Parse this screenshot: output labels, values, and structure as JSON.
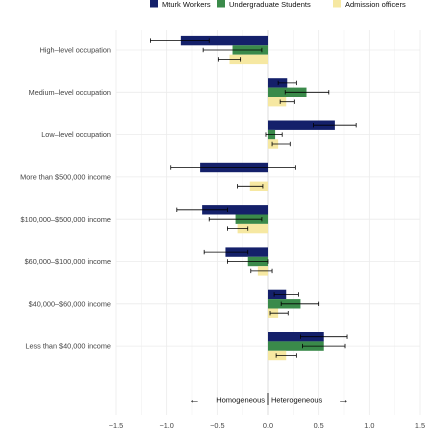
{
  "chart_data": {
    "type": "bar",
    "orientation": "horizontal",
    "title": "",
    "xlabel": "",
    "ylabel": "",
    "xlim": [
      -1.5,
      1.5
    ],
    "xticks": [
      -1.5,
      -1.0,
      -0.5,
      0.0,
      0.5,
      1.0,
      1.5
    ],
    "xtick_labels": [
      "−1.5",
      "−1.0",
      "−0.5",
      "0.0",
      "0.5",
      "1.0",
      "1.5"
    ],
    "grid": true,
    "legend_position": "top",
    "categories": [
      "High–level occupation",
      "Medium–level occupation",
      "Low–level occupation",
      "More than $500,000 income",
      "$100,000–$500,000 income",
      "$60,000–$100,000 income",
      "$40,000–$60,000 income",
      "Less than $40,000 income"
    ],
    "series": [
      {
        "name": "Mturk Workers",
        "color": "#14206a",
        "values": [
          -0.86,
          0.19,
          0.66,
          -0.67,
          -0.65,
          -0.42,
          0.18,
          0.55
        ],
        "err_low": [
          -1.16,
          0.1,
          0.45,
          -0.96,
          -0.9,
          -0.63,
          0.06,
          0.32
        ],
        "err_high": [
          -0.58,
          0.28,
          0.87,
          0.27,
          -0.4,
          -0.2,
          0.3,
          0.78
        ]
      },
      {
        "name": "Undergraduate Students",
        "color": "#3a8a4a",
        "values": [
          -0.35,
          0.38,
          0.07,
          0.0,
          -0.32,
          -0.2,
          0.32,
          0.55
        ],
        "err_low": [
          -0.64,
          0.17,
          -0.02,
          0.0,
          -0.58,
          -0.4,
          0.13,
          0.34
        ],
        "err_high": [
          -0.06,
          0.6,
          0.14,
          0.0,
          -0.06,
          0.0,
          0.5,
          0.76
        ]
      },
      {
        "name": "Admission officers",
        "color": "#f6e8a2",
        "values": [
          -0.38,
          0.18,
          0.1,
          -0.18,
          -0.3,
          -0.1,
          0.1,
          0.18
        ],
        "err_low": [
          -0.49,
          0.12,
          0.04,
          -0.3,
          -0.4,
          -0.17,
          0.02,
          0.08
        ],
        "err_high": [
          -0.27,
          0.26,
          0.22,
          -0.05,
          -0.2,
          0.04,
          0.2,
          0.28
        ]
      }
    ],
    "annotation": {
      "left": "Homogeneous",
      "right": "Heterogeneous",
      "left_arrow": "←",
      "right_arrow": "→",
      "x_value": 0.0
    }
  }
}
